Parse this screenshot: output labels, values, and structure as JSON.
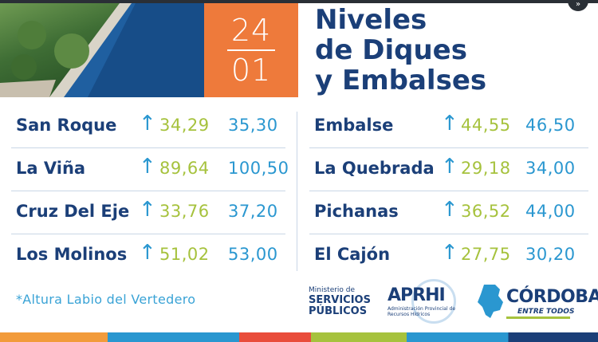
{
  "header": {
    "date_day": "24",
    "date_month": "01",
    "title_lines": [
      "Niveles",
      "de Diques",
      "y Embalses"
    ]
  },
  "left_table": [
    {
      "name": "San Roque",
      "current": "34,29",
      "max": "35,30"
    },
    {
      "name": "La Viña",
      "current": "89,64",
      "max": "100,50"
    },
    {
      "name": "Cruz Del Eje",
      "current": "33,76",
      "max": "37,20"
    },
    {
      "name": "Los Molinos",
      "current": "51,02",
      "max": "53,00"
    }
  ],
  "right_table": [
    {
      "name": "Embalse",
      "current": "44,55",
      "max": "46,50"
    },
    {
      "name": "La Quebrada",
      "current": "29,18",
      "max": "34,00"
    },
    {
      "name": "Pichanas",
      "current": "36,52",
      "max": "44,00"
    },
    {
      "name": "El Cajón",
      "current": "27,75",
      "max": "30,20"
    }
  ],
  "arrow_symbol": "↑",
  "footnote": "*Altura Labio del Vertedero",
  "logos": {
    "ministerio_small": "Ministerio de",
    "ministerio_line1": "SERVICIOS",
    "ministerio_line2": "PÚBLICOS",
    "aprhi": "APRHI",
    "aprhi_sub": "Administración Provincial de Recursos Hídricos",
    "cordoba": "CÓRDOBA",
    "cordoba_sub": "ENTRE TODOS"
  },
  "colors": {
    "navy": "#1b3f78",
    "orange": "#ee7a3b",
    "green": "#a6c23d",
    "blue": "#2a97d0"
  }
}
